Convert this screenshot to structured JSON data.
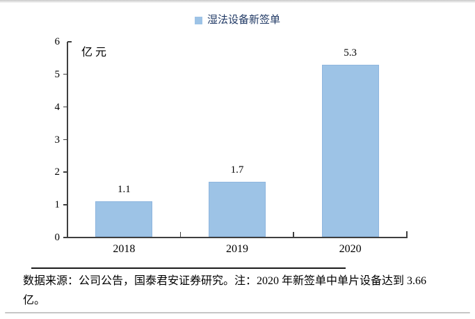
{
  "legend": {
    "label": "湿法设备新签单"
  },
  "chart_data": {
    "type": "bar",
    "title": "",
    "unit_label": "亿元",
    "legend": [
      "湿法设备新签单"
    ],
    "legend_position": "top-center",
    "categories": [
      "2018",
      "2019",
      "2020"
    ],
    "values": [
      1.1,
      1.7,
      5.3
    ],
    "value_labels": [
      "1.1",
      "1.7",
      "5.3"
    ],
    "ylim": [
      0,
      6
    ],
    "yticks": [
      0,
      1,
      2,
      3,
      4,
      5,
      6
    ],
    "grid": false,
    "bar_color": "#9DC3E6",
    "bar_border_color": "#8EB5DE",
    "axis_color": "#3F3F3F",
    "legend_text_color": "#1F3864"
  },
  "footer": {
    "source_note_lines": [
      "数据来源：公司公告，国泰君安证券研究。注：2020 年新签单中单片设备达到 3.66",
      "亿。"
    ]
  }
}
